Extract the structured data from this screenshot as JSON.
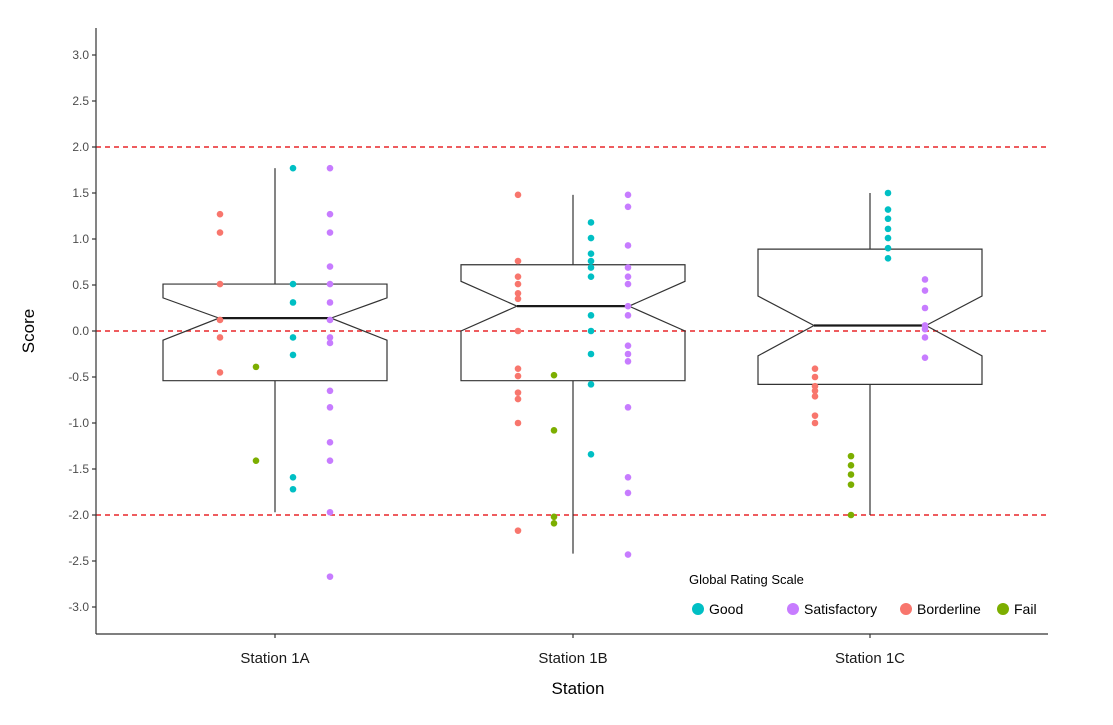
{
  "chart_data": {
    "type": "boxplot",
    "notched": true,
    "xlabel": "Station",
    "ylabel": "Score",
    "ylim": [
      -3.25,
      3.3
    ],
    "yticks": [
      "3.0",
      "2.5",
      "2.0",
      "1.5",
      "1.0",
      "0.5",
      "0.0",
      "-0.5",
      "-1.0",
      "-1.5",
      "-2.0",
      "-2.5",
      "-3.0"
    ],
    "ytick_values": [
      3.0,
      2.5,
      2.0,
      1.5,
      1.0,
      0.5,
      0.0,
      -0.5,
      -1.0,
      -1.5,
      -2.0,
      -2.5,
      -3.0
    ],
    "reference_lines": [
      2.0,
      0.0,
      -2.0
    ],
    "reference_line_color": "#e8262a",
    "grid": false,
    "categories": [
      "Station 1A",
      "Station 1B",
      "Station 1C"
    ],
    "boxes": [
      {
        "category": "Station 1A",
        "whisker_low": -1.97,
        "q1": -0.54,
        "median": 0.14,
        "q3": 0.51,
        "whisker_high": 1.77,
        "notch_low": -0.1,
        "notch_high": 0.36
      },
      {
        "category": "Station 1B",
        "whisker_low": -2.42,
        "q1": -0.54,
        "median": 0.27,
        "q3": 0.72,
        "whisker_high": 1.48,
        "notch_low": 0.0,
        "notch_high": 0.54
      },
      {
        "category": "Station 1C",
        "whisker_low": -2.0,
        "q1": -0.58,
        "median": 0.06,
        "q3": 0.89,
        "whisker_high": 1.5,
        "notch_low": -0.27,
        "notch_high": 0.38
      }
    ],
    "legend": {
      "title": "Global Rating Scale",
      "placement": "bottom-right",
      "entries": [
        {
          "key": "good",
          "label": "Good",
          "color": "#00bfc4"
        },
        {
          "key": "satisfactory",
          "label": "Satisfactory",
          "color": "#c77cff"
        },
        {
          "key": "borderline",
          "label": "Borderline",
          "color": "#f8766d"
        },
        {
          "key": "fail",
          "label": "Fail",
          "color": "#7cae00"
        }
      ]
    },
    "points": [
      {
        "category": "Station 1A",
        "group": "borderline",
        "values": [
          1.27,
          1.07,
          0.51,
          0.12,
          -0.07,
          -0.45
        ]
      },
      {
        "category": "Station 1A",
        "group": "fail",
        "values": [
          -0.39,
          -1.41
        ]
      },
      {
        "category": "Station 1A",
        "group": "good",
        "values": [
          1.77,
          0.51,
          0.31,
          -0.07,
          -0.26,
          -1.59,
          -1.72
        ]
      },
      {
        "category": "Station 1A",
        "group": "satisfactory",
        "values": [
          1.77,
          1.27,
          1.07,
          0.7,
          0.51,
          0.31,
          0.12,
          -0.07,
          -0.13,
          -0.65,
          -0.83,
          -1.21,
          -1.41,
          -1.97,
          -2.67
        ]
      },
      {
        "category": "Station 1B",
        "group": "borderline",
        "values": [
          1.48,
          0.76,
          0.59,
          0.51,
          0.41,
          0.35,
          0.0,
          -0.41,
          -0.49,
          -0.67,
          -0.74,
          -1.0,
          -2.17
        ]
      },
      {
        "category": "Station 1B",
        "group": "fail",
        "values": [
          -0.48,
          -1.08,
          -2.02,
          -2.09
        ]
      },
      {
        "category": "Station 1B",
        "group": "good",
        "values": [
          1.18,
          1.01,
          0.84,
          0.76,
          0.69,
          0.59,
          0.17,
          0.0,
          -0.25,
          -0.58,
          -1.34
        ]
      },
      {
        "category": "Station 1B",
        "group": "satisfactory",
        "values": [
          1.48,
          1.35,
          0.93,
          0.69,
          0.59,
          0.51,
          0.27,
          0.17,
          -0.16,
          -0.25,
          -0.33,
          -0.83,
          -1.59,
          -1.76,
          -2.43
        ]
      },
      {
        "category": "Station 1C",
        "group": "borderline",
        "values": [
          -0.41,
          -0.5,
          -0.6,
          -0.65,
          -0.71,
          -0.92,
          -1.0
        ]
      },
      {
        "category": "Station 1C",
        "group": "fail",
        "values": [
          -1.36,
          -1.46,
          -1.56,
          -1.67,
          -2.0
        ]
      },
      {
        "category": "Station 1C",
        "group": "good",
        "values": [
          1.5,
          1.32,
          1.22,
          1.11,
          1.01,
          0.9,
          0.79
        ]
      },
      {
        "category": "Station 1C",
        "group": "satisfactory",
        "values": [
          0.56,
          0.44,
          0.25,
          0.06,
          0.02,
          -0.07,
          -0.29
        ]
      }
    ]
  }
}
